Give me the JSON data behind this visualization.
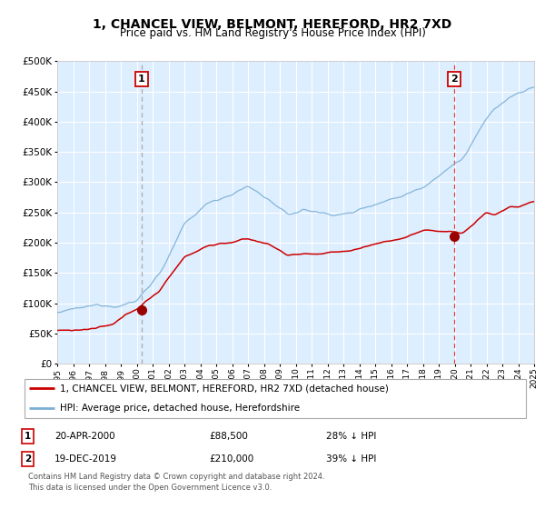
{
  "title": "1, CHANCEL VIEW, BELMONT, HEREFORD, HR2 7XD",
  "subtitle": "Price paid vs. HM Land Registry's House Price Index (HPI)",
  "title_fontsize": 10,
  "subtitle_fontsize": 8.5,
  "bg_color": "#ddeeff",
  "grid_color": "#ffffff",
  "x_start_year": 1995,
  "x_end_year": 2025,
  "ylim": [
    0,
    500000
  ],
  "yticks": [
    0,
    50000,
    100000,
    150000,
    200000,
    250000,
    300000,
    350000,
    400000,
    450000,
    500000
  ],
  "sale1_date_num": 2000.3,
  "sale1_price": 88500,
  "sale2_date_num": 2019.97,
  "sale2_price": 210000,
  "red_line_color": "#cc0000",
  "blue_line_color": "#7aafd4",
  "marker_color": "#990000",
  "vline1_color": "#aaaaaa",
  "vline2_color": "#dd4444",
  "legend_red": "1, CHANCEL VIEW, BELMONT, HEREFORD, HR2 7XD (detached house)",
  "legend_blue": "HPI: Average price, detached house, Herefordshire",
  "note1_num": "1",
  "note1_date": "20-APR-2000",
  "note1_price": "£88,500",
  "note1_hpi": "28% ↓ HPI",
  "note2_num": "2",
  "note2_date": "19-DEC-2019",
  "note2_price": "£210,000",
  "note2_hpi": "39% ↓ HPI",
  "footer": "Contains HM Land Registry data © Crown copyright and database right 2024.\nThis data is licensed under the Open Government Licence v3.0."
}
